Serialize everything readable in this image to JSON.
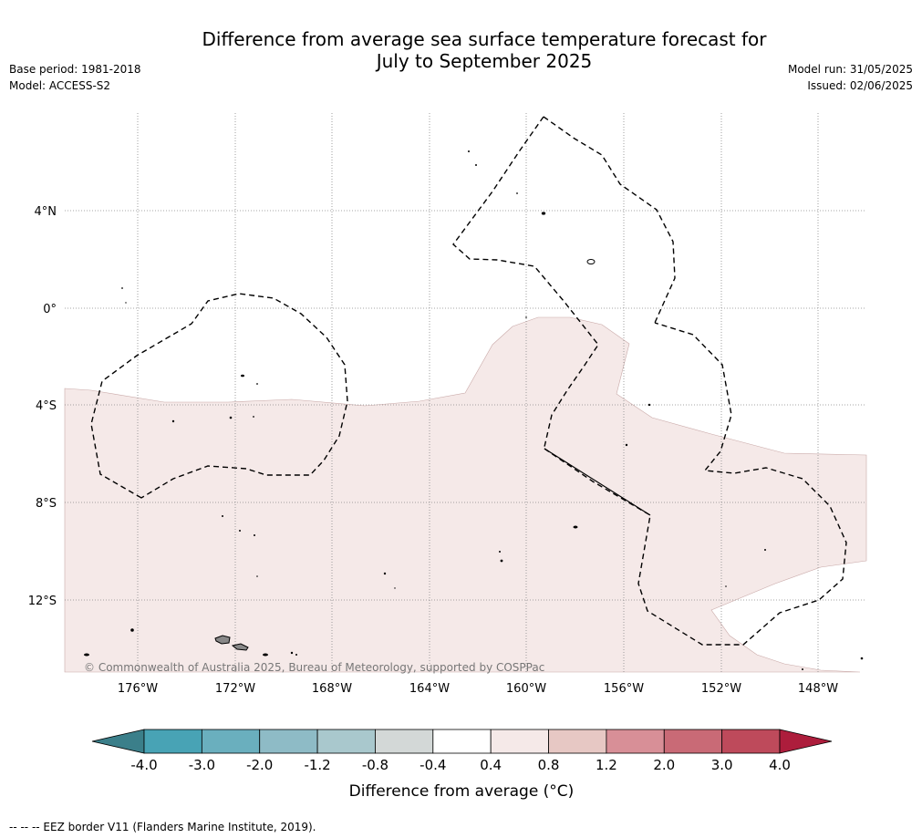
{
  "header": {
    "title_line1": "Difference from average sea surface temperature forecast for",
    "title_line2": "July to September 2025",
    "base_period": "Base period: 1981-2018",
    "model": "Model: ACCESS-S2",
    "model_run": "Model run: 31/05/2025",
    "issued": "Issued: 02/06/2025"
  },
  "map": {
    "lat_labels": [
      "4°N",
      "0°",
      "4°S",
      "8°S",
      "12°S"
    ],
    "lon_labels": [
      "176°W",
      "172°W",
      "168°W",
      "164°W",
      "160°W",
      "156°W",
      "152°W",
      "148°W"
    ],
    "copyright": "© Commonwealth of Australia 2025, Bureau of Meteorology, supported by COSPPac",
    "anomaly_fill_color": "#f5e9e8",
    "eez_border_style": "dashed"
  },
  "legend": {
    "ticks": [
      "-4.0",
      "-3.0",
      "-2.0",
      "-1.2",
      "-0.8",
      "-0.4",
      "0.4",
      "0.8",
      "1.2",
      "2.0",
      "3.0",
      "4.0"
    ],
    "colors": [
      "#3b7f8a",
      "#48a3b5",
      "#6aafbe",
      "#8ebbc6",
      "#a9c8cd",
      "#d3d8d7",
      "#ffffff",
      "#f5e9e8",
      "#e7c8c4",
      "#d88f97",
      "#c96a76",
      "#be4a5b",
      "#ad1d3c"
    ],
    "label": "Difference from average (°C)"
  },
  "footer": {
    "eez_note": "--  --  -- EEZ border V11 (Flanders Marine Institute, 2019)."
  }
}
